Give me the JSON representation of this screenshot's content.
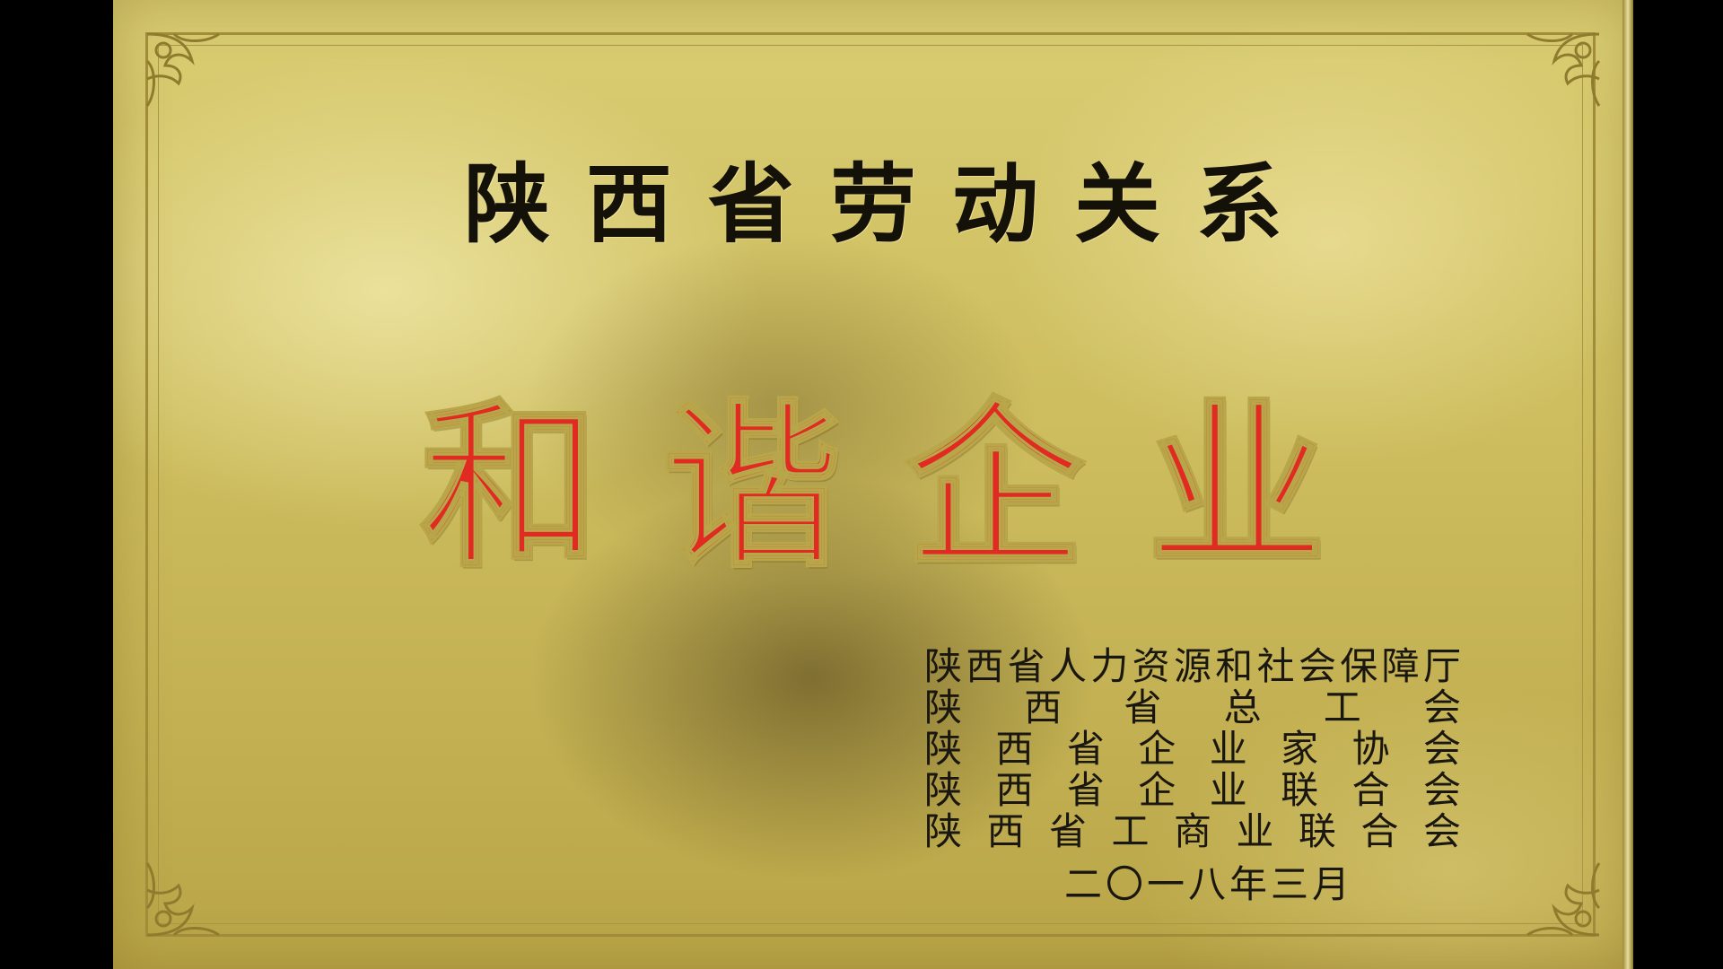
{
  "plaque": {
    "title_top": "陕西省劳动关系",
    "title_main": "和谐企业",
    "issuers": [
      "陕西省人力资源和社会保障厅",
      "陕西省总工会",
      "陕西省企业家协会",
      "陕西省企业联合会",
      "陕西省工商业联合会"
    ],
    "date": "二〇一八年三月"
  },
  "colors": {
    "gold": "#cdbd5e",
    "title_black": "#141208",
    "title_red": "#e02a22",
    "border": "#a18c3a"
  }
}
